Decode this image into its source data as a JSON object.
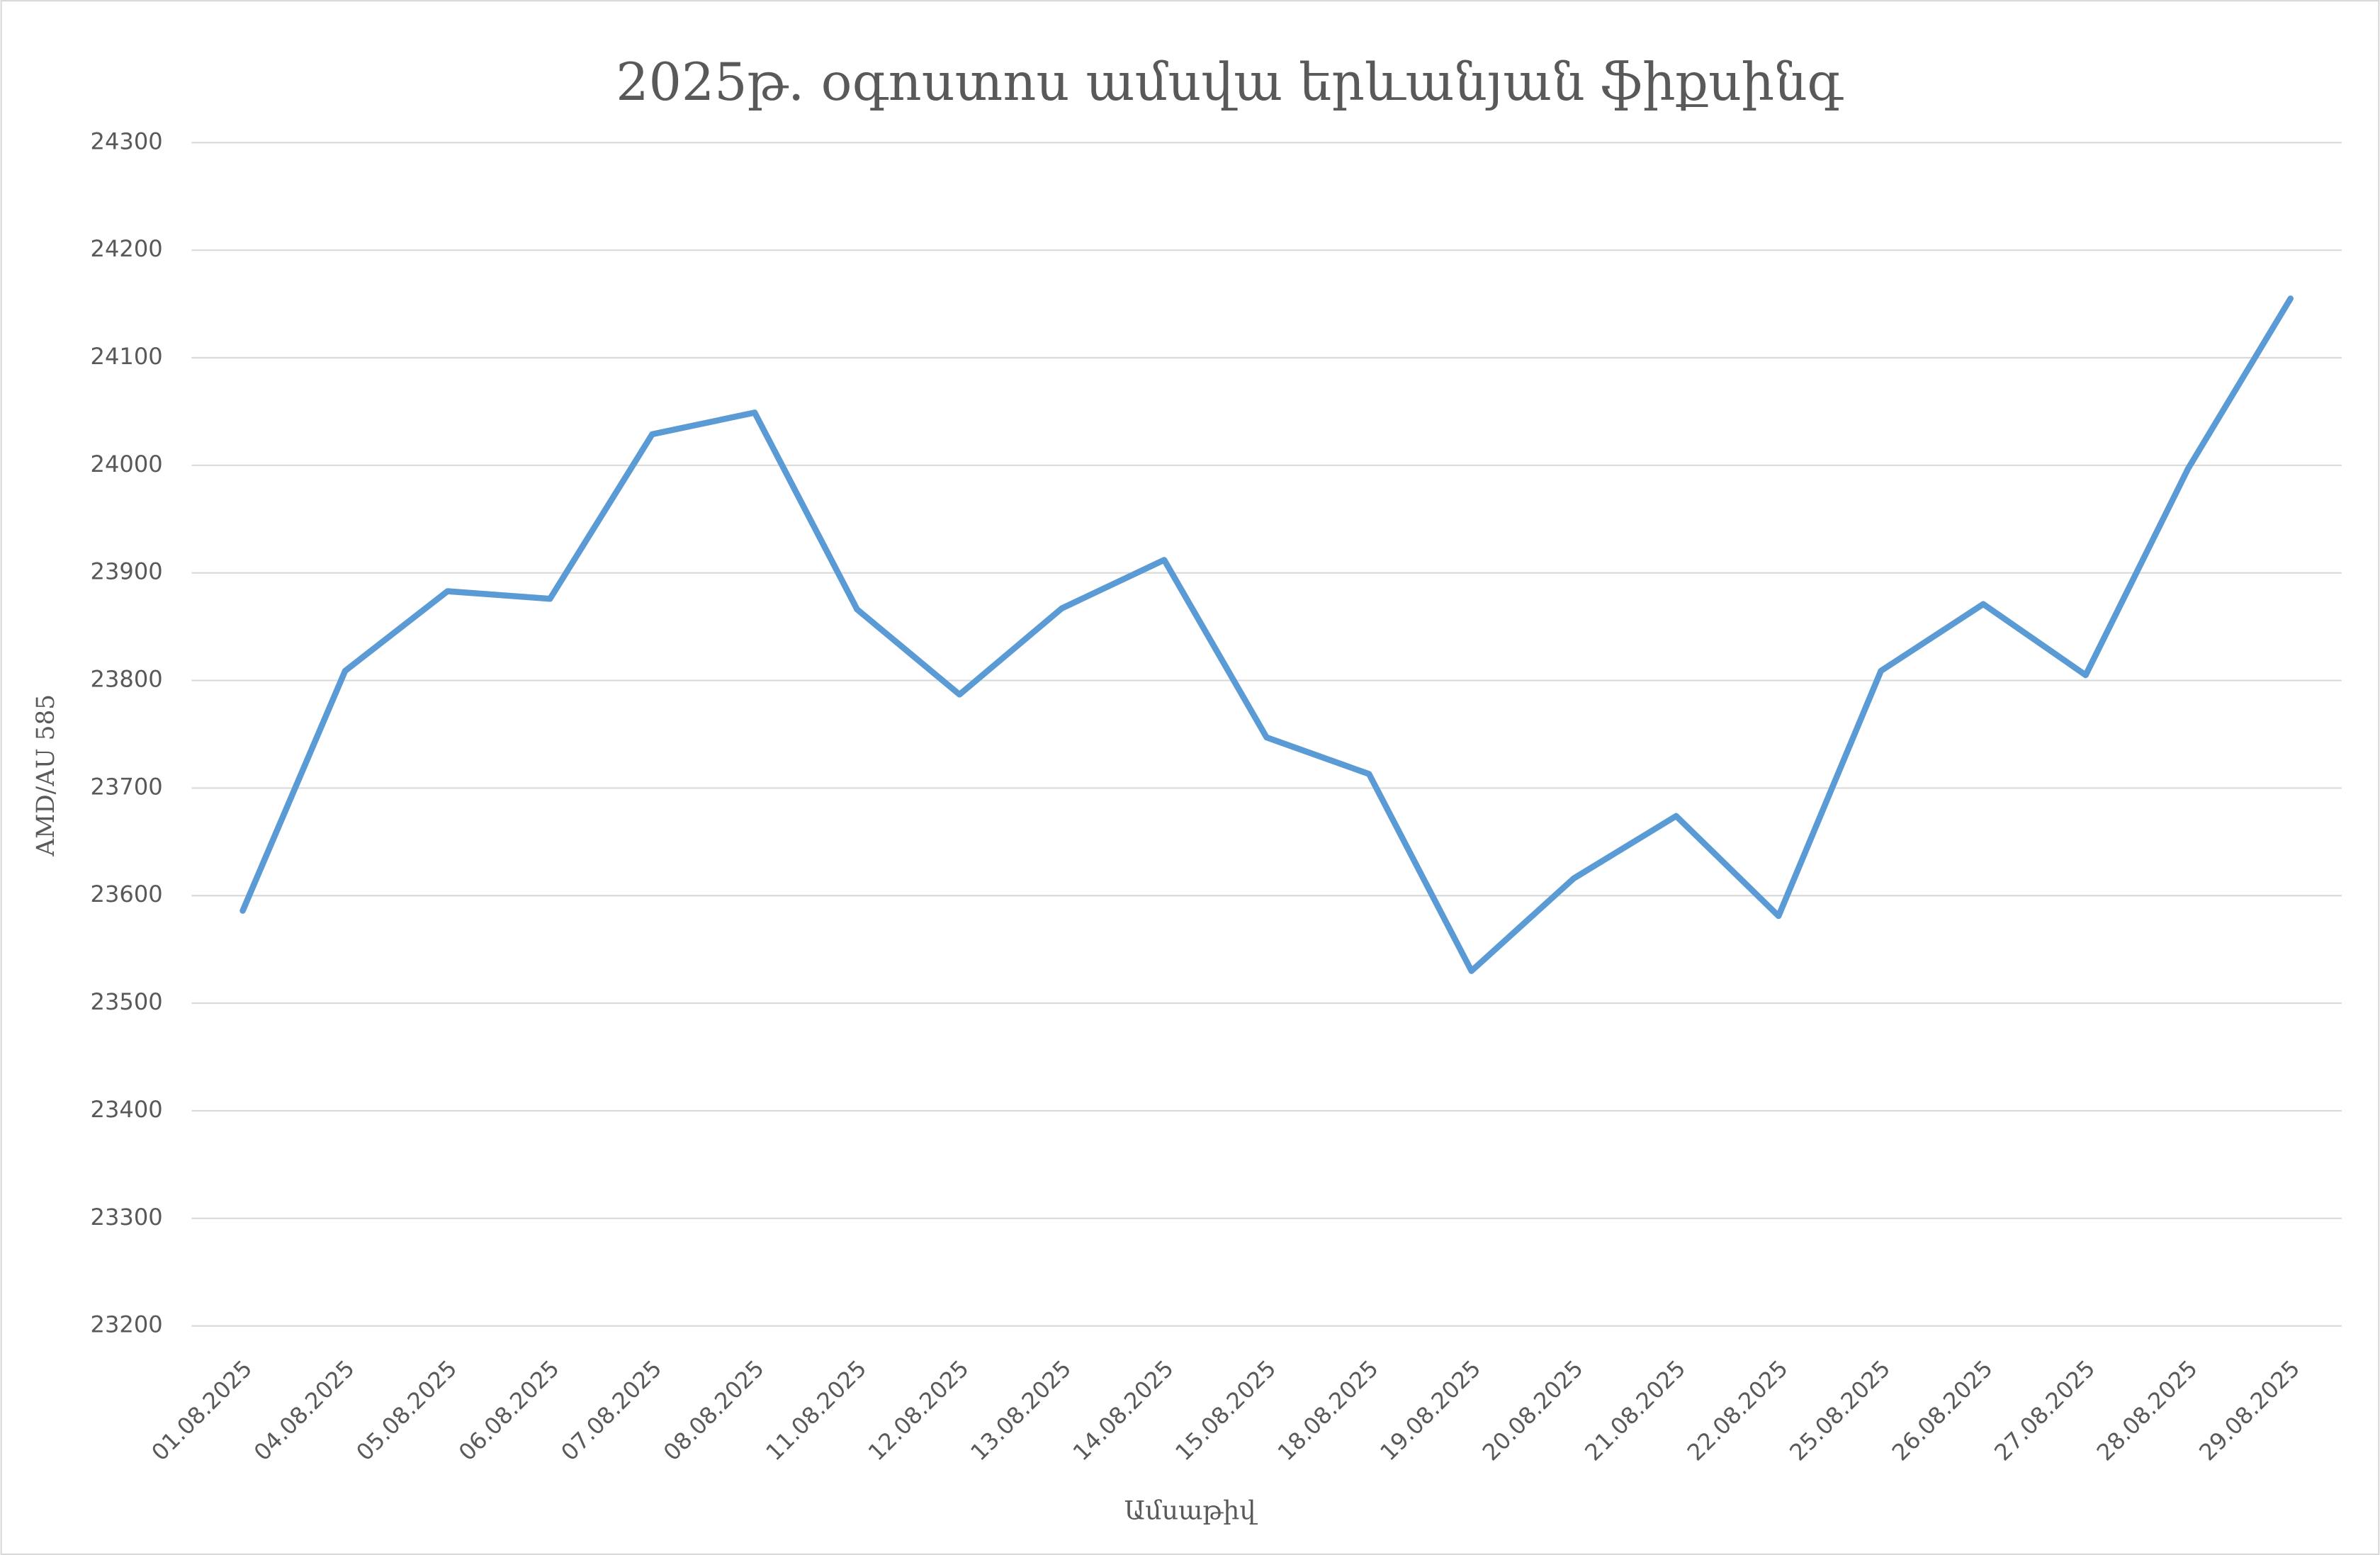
{
  "chart_data": {
    "type": "line",
    "title": "2025թ. օգոստոս ամսվա երևանյան ֆիքսինգ",
    "x_label": "Ամսաթիվ",
    "y_label": "AMD/AU 585",
    "categories": [
      "01.08.2025",
      "04.08.2025",
      "05.08.2025",
      "06.08.2025",
      "07.08.2025",
      "08.08.2025",
      "11.08.2025",
      "12.08.2025",
      "13.08.2025",
      "14.08.2025",
      "15.08.2025",
      "18.08.2025",
      "19.08.2025",
      "20.08.2025",
      "21.08.2025",
      "22.08.2025",
      "25.08.2025",
      "26.08.2025",
      "27.08.2025",
      "28.08.2025",
      "29.08.2025"
    ],
    "series": [
      {
        "color": "#5b9bd5",
        "values": [
          23586,
          23809,
          23883,
          23876,
          24029,
          24049,
          23866,
          23787,
          23867,
          23912,
          23747,
          23713,
          23530,
          23616,
          23674,
          23581,
          23809,
          23871,
          23805,
          23997,
          24155
        ]
      }
    ],
    "ylim": [
      23200,
      24300
    ],
    "yticks": [
      23200,
      23300,
      23400,
      23500,
      23600,
      23700,
      23800,
      23900,
      24000,
      24100,
      24200,
      24300
    ],
    "grid": true
  }
}
